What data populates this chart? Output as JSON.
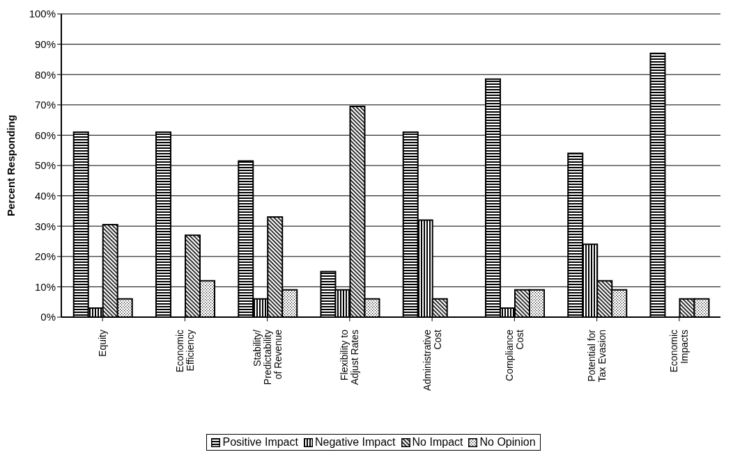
{
  "chart_data": {
    "type": "bar",
    "ylabel": "Percent Responding",
    "categories": [
      "Equity",
      "Economic\nEfficiency",
      "Stability/\nPredictability\nof Revenue",
      "Flexibility to\nAdjust Rates",
      "Administrative\nCost",
      "Compliance\nCost",
      "Potential for\nTax Evasion",
      "Economic\nImpacts"
    ],
    "series": [
      {
        "name": "Positive Impact",
        "color": "#000000",
        "values": [
          61,
          61,
          51.5,
          15,
          61,
          78.5,
          54,
          87
        ]
      },
      {
        "name": "Negative Impact",
        "color": "#000000",
        "values": [
          3,
          0,
          6,
          9,
          32,
          3,
          24,
          0
        ]
      },
      {
        "name": "No Impact",
        "color": "#000000",
        "values": [
          30.5,
          27,
          33,
          69.5,
          6,
          9,
          12,
          6
        ]
      },
      {
        "name": "No Opinion",
        "color": "#000000",
        "values": [
          6,
          12,
          9,
          6,
          0,
          9,
          9,
          6
        ]
      }
    ],
    "ylim": [
      0,
      100
    ],
    "yticks": [
      {
        "value": 0,
        "label": "0%"
      },
      {
        "value": 10,
        "label": "10%"
      },
      {
        "value": 20,
        "label": "20%"
      },
      {
        "value": 30,
        "label": "30%"
      },
      {
        "value": 40,
        "label": "40%"
      },
      {
        "value": 50,
        "label": "50%"
      },
      {
        "value": 60,
        "label": "60%"
      },
      {
        "value": 70,
        "label": "70%"
      },
      {
        "value": 80,
        "label": "80%"
      },
      {
        "value": 90,
        "label": "90%"
      },
      {
        "value": 100,
        "label": "100%"
      }
    ],
    "grid": "y",
    "legend": "bottom"
  }
}
